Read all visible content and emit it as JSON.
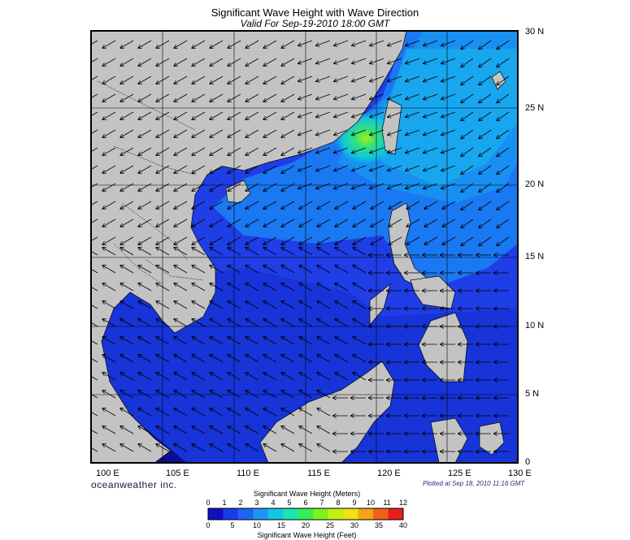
{
  "title": "Significant Wave Height with Wave Direction",
  "subtitle": "Valid For Sep-19-2010 18:00 GMT",
  "brand": "oceanweather inc.",
  "plotted_note": "Plotted at Sep 18, 2010 11:16 GMT",
  "lon_labels": [
    "100 E",
    "105 E",
    "110 E",
    "115 E",
    "120 E",
    "125 E",
    "130 E"
  ],
  "lat_labels": [
    "30 N",
    "25 N",
    "20 N",
    "15 N",
    "10 N",
    "5 N",
    "0"
  ],
  "colorbar": {
    "meters_title": "Significant Wave Height (Meters)",
    "meters_ticks": [
      "0",
      "1",
      "2",
      "3",
      "4",
      "5",
      "6",
      "7",
      "8",
      "9",
      "10",
      "11",
      "12"
    ],
    "feet_title": "Significant Wave Height (Feet)",
    "feet_ticks": [
      "0",
      "5",
      "10",
      "15",
      "20",
      "25",
      "30",
      "35",
      "40"
    ],
    "colors": [
      "#1010c0",
      "#1a3cf0",
      "#1c66f6",
      "#1c96f4",
      "#12c6e6",
      "#18e8b0",
      "#36ee54",
      "#7cf21c",
      "#c2f010",
      "#f2e010",
      "#f6a416",
      "#f26018",
      "#e81e1e"
    ]
  },
  "colors": {
    "land": "#c3c3c3",
    "deep_sea": "#1f3fe0",
    "grid": "#000000"
  }
}
